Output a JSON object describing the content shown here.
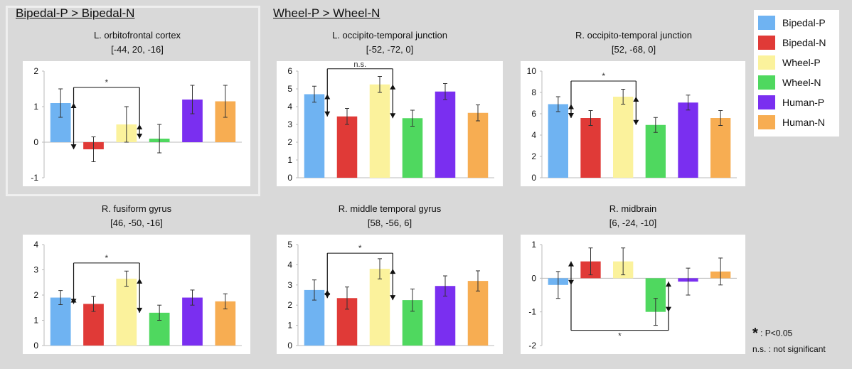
{
  "groups": {
    "bipedal": "Bipedal-P > Bipedal-N",
    "wheel": "Wheel-P > Wheel-N"
  },
  "legend": [
    {
      "label": "Bipedal-P",
      "color": "#6fb3f2"
    },
    {
      "label": "Bipedal-N",
      "color": "#e03a37"
    },
    {
      "label": "Wheel-P",
      "color": "#fbf29c"
    },
    {
      "label": "Wheel-N",
      "color": "#4fd85f"
    },
    {
      "label": "Human-P",
      "color": "#7a2ff0"
    },
    {
      "label": "Human-N",
      "color": "#f7ad52"
    }
  ],
  "notes": {
    "star": "*",
    "p_text": " : P<0.05",
    "ns": "n.s. : not significant"
  },
  "chart_data": [
    {
      "type": "bar",
      "title": "L. orbitofrontal cortex",
      "subtitle": "[-44, 20, -16]",
      "categories": [
        "Bipedal-P",
        "Bipedal-N",
        "Wheel-P",
        "Wheel-N",
        "Human-P",
        "Human-N"
      ],
      "values": [
        1.1,
        -0.2,
        0.5,
        0.1,
        1.2,
        1.15
      ],
      "errors": [
        0.4,
        0.35,
        0.5,
        0.4,
        0.4,
        0.45
      ],
      "ylim": [
        -1,
        2
      ],
      "yticks": [
        -1,
        0,
        1,
        2
      ],
      "bracket": {
        "from": 0,
        "to": 2,
        "label": "*",
        "pos": "top"
      }
    },
    {
      "type": "bar",
      "title": "L. occipito-temporal junction",
      "subtitle": "[-52, -72, 0]",
      "categories": [
        "Bipedal-P",
        "Bipedal-N",
        "Wheel-P",
        "Wheel-N",
        "Human-P",
        "Human-N"
      ],
      "values": [
        4.7,
        3.45,
        5.25,
        3.35,
        4.85,
        3.65
      ],
      "errors": [
        0.45,
        0.45,
        0.45,
        0.45,
        0.45,
        0.45
      ],
      "ylim": [
        0,
        6
      ],
      "yticks": [
        0,
        1,
        2,
        3,
        4,
        5,
        6
      ],
      "bracket": {
        "from": 0,
        "to": 2,
        "label": "n.s.",
        "pos": "top"
      }
    },
    {
      "type": "bar",
      "title": "R. occipito-temporal junction",
      "subtitle": "[52, -68, 0]",
      "categories": [
        "Bipedal-P",
        "Bipedal-N",
        "Wheel-P",
        "Wheel-N",
        "Human-P",
        "Human-N"
      ],
      "values": [
        6.9,
        5.6,
        7.6,
        4.95,
        7.05,
        5.6
      ],
      "errors": [
        0.7,
        0.7,
        0.7,
        0.7,
        0.7,
        0.7
      ],
      "ylim": [
        0,
        10
      ],
      "yticks": [
        0,
        2,
        4,
        6,
        8,
        10
      ],
      "bracket": {
        "from": 0,
        "to": 2,
        "label": "*",
        "pos": "top"
      }
    },
    {
      "type": "bar",
      "title": "R. fusiform gyrus",
      "subtitle": "[46, -50, -16]",
      "categories": [
        "Bipedal-P",
        "Bipedal-N",
        "Wheel-P",
        "Wheel-N",
        "Human-P",
        "Human-N"
      ],
      "values": [
        1.9,
        1.65,
        2.65,
        1.3,
        1.9,
        1.75
      ],
      "errors": [
        0.28,
        0.3,
        0.3,
        0.3,
        0.3,
        0.3
      ],
      "ylim": [
        0,
        4
      ],
      "yticks": [
        0,
        1,
        2,
        3,
        4
      ],
      "bracket": {
        "from": 0,
        "to": 2,
        "label": "*",
        "pos": "top"
      }
    },
    {
      "type": "bar",
      "title": "R. middle temporal gyrus",
      "subtitle": "[58, -56, 6]",
      "categories": [
        "Bipedal-P",
        "Bipedal-N",
        "Wheel-P",
        "Wheel-N",
        "Human-P",
        "Human-N"
      ],
      "values": [
        2.75,
        2.35,
        3.8,
        2.25,
        2.95,
        3.2
      ],
      "errors": [
        0.5,
        0.55,
        0.5,
        0.55,
        0.5,
        0.5
      ],
      "ylim": [
        0,
        5
      ],
      "yticks": [
        0,
        1,
        2,
        3,
        4,
        5
      ],
      "bracket": {
        "from": 0,
        "to": 2,
        "label": "*",
        "pos": "top"
      }
    },
    {
      "type": "bar",
      "title": "R. midbrain",
      "subtitle": "[6, -24, -10]",
      "categories": [
        "Bipedal-P",
        "Bipedal-N",
        "Wheel-P",
        "Wheel-N",
        "Human-P",
        "Human-N"
      ],
      "values": [
        -0.2,
        0.5,
        0.5,
        -1.0,
        -0.1,
        0.2
      ],
      "errors": [
        0.4,
        0.4,
        0.4,
        0.4,
        0.4,
        0.4
      ],
      "ylim": [
        -2,
        1
      ],
      "yticks": [
        -2,
        -1,
        0,
        1
      ],
      "bracket": {
        "from": 0,
        "to": 3,
        "label": "*",
        "pos": "bottom"
      }
    }
  ]
}
